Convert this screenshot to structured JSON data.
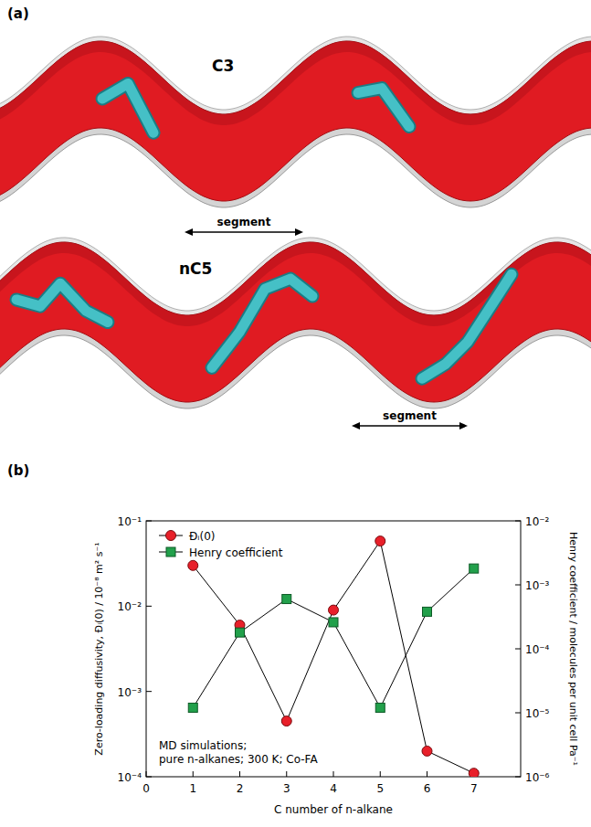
{
  "panel_a": {
    "letter": "(a)",
    "labels": [
      "C3",
      "nC5"
    ],
    "segment_labels": [
      "segment",
      "segment"
    ]
  },
  "chart_data": {
    "type": "line",
    "letter": "(b)",
    "x": [
      1,
      2,
      3,
      4,
      5,
      6,
      7
    ],
    "xlim": [
      0,
      8
    ],
    "xticks": [
      0,
      1,
      2,
      3,
      4,
      5,
      6,
      7
    ],
    "xlabel": "C number of n-alkane",
    "ylabel": "Zero-loading diffusivity, Đᵢ(0) / 10⁻⁸ m² s⁻¹",
    "y2label": "Henry coefficient / molecules per unit cell Pa⁻¹",
    "log": "y",
    "ylim": [
      0.0001,
      0.1
    ],
    "yticks": [
      {
        "value": 0.0001,
        "label": "10⁻⁴"
      },
      {
        "value": 0.001,
        "label": "10⁻³"
      },
      {
        "value": 0.01,
        "label": "10⁻²"
      },
      {
        "value": 0.1,
        "label": "10⁻¹"
      }
    ],
    "y2lim": [
      1e-06,
      0.01
    ],
    "y2ticks": [
      {
        "value": 1e-06,
        "label": "10⁻⁶"
      },
      {
        "value": 1e-05,
        "label": "10⁻⁵"
      },
      {
        "value": 0.0001,
        "label": "10⁻⁴"
      },
      {
        "value": 0.001,
        "label": "10⁻³"
      },
      {
        "value": 0.01,
        "label": "10⁻²"
      }
    ],
    "grid": false,
    "legend": "upper left",
    "annotations": [
      "MD simulations;",
      "pure n-alkanes; 300 K; Co-FA"
    ],
    "series": [
      {
        "name": "Đᵢ(0)",
        "color": "#e8202a",
        "marker": "circle",
        "values": [
          0.03,
          0.006,
          0.00045,
          0.009,
          0.058,
          0.0002,
          0.00011
        ]
      },
      {
        "name": "Henry coefficient",
        "color": "#22a04b",
        "marker": "square",
        "axis": "y2",
        "values": [
          1.2e-05,
          0.00018,
          0.0006,
          0.00026,
          1.2e-05,
          0.00038,
          0.0018
        ]
      }
    ]
  }
}
